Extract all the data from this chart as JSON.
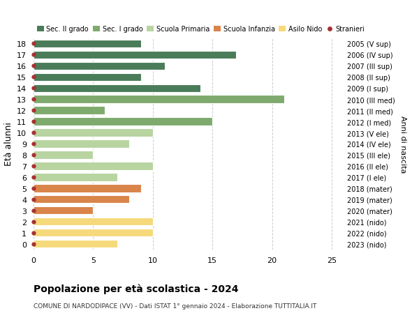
{
  "ages": [
    18,
    17,
    16,
    15,
    14,
    13,
    12,
    11,
    10,
    9,
    8,
    7,
    6,
    5,
    4,
    3,
    2,
    1,
    0
  ],
  "years": [
    "2005 (V sup)",
    "2006 (IV sup)",
    "2007 (III sup)",
    "2008 (II sup)",
    "2009 (I sup)",
    "2010 (III med)",
    "2011 (II med)",
    "2012 (I med)",
    "2013 (V ele)",
    "2014 (IV ele)",
    "2015 (III ele)",
    "2016 (II ele)",
    "2017 (I ele)",
    "2018 (mater)",
    "2019 (mater)",
    "2020 (mater)",
    "2021 (nido)",
    "2022 (nido)",
    "2023 (nido)"
  ],
  "values": [
    9,
    17,
    11,
    9,
    14,
    21,
    6,
    15,
    10,
    8,
    5,
    10,
    7,
    9,
    8,
    5,
    10,
    10,
    7
  ],
  "colors": [
    "#4a7c59",
    "#4a7c59",
    "#4a7c59",
    "#4a7c59",
    "#4a7c59",
    "#7faa6e",
    "#7faa6e",
    "#7faa6e",
    "#b8d4a0",
    "#b8d4a0",
    "#b8d4a0",
    "#b8d4a0",
    "#b8d4a0",
    "#d9844a",
    "#d9844a",
    "#d9844a",
    "#f5d97a",
    "#f5d97a",
    "#f5d97a"
  ],
  "legend_labels": [
    "Sec. II grado",
    "Sec. I grado",
    "Scuola Primaria",
    "Scuola Infanzia",
    "Asilo Nido",
    "Stranieri"
  ],
  "legend_colors": [
    "#4a7c59",
    "#7faa6e",
    "#b8d4a0",
    "#d9844a",
    "#f5d97a",
    "#a83030"
  ],
  "stranieri_color": "#a83030",
  "ylabel_left": "Età alunni",
  "ylabel_right": "Anni di nascita",
  "title": "Popolazione per età scolastica - 2024",
  "subtitle": "COMUNE DI NARDODIPACE (VV) - Dati ISTAT 1° gennaio 2024 - Elaborazione TUTTITALIA.IT",
  "xlim": [
    0,
    26
  ],
  "xticks": [
    0,
    5,
    10,
    15,
    20,
    25
  ],
  "ylim": [
    -0.5,
    18.5
  ],
  "background_color": "#ffffff",
  "grid_color": "#cccccc"
}
